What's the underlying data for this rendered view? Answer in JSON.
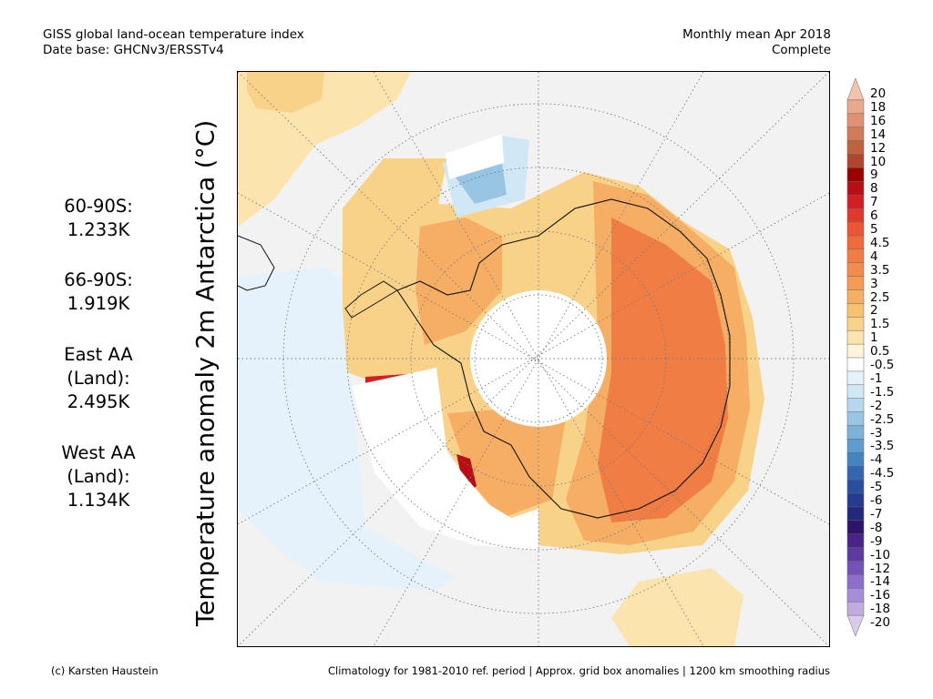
{
  "header": {
    "line1_left": "GISS global land-ocean temperature index",
    "line2_left": "Date base: GHCNv3/ERSSTv4",
    "line1_right": "Monthly mean Apr 2018",
    "line2_right": "Complete"
  },
  "stats": [
    {
      "label": "60-90S:",
      "value": "1.233K"
    },
    {
      "label": "66-90S:",
      "value": "1.919K"
    },
    {
      "label": "East AA",
      "label2": "(Land):",
      "value": "2.495K"
    },
    {
      "label": "West AA",
      "label2": "(Land):",
      "value": "1.134K"
    }
  ],
  "axis_title": "Temperature anomaly 2m Antarctica (°C)",
  "colorbar": {
    "labels": [
      "20",
      "18",
      "16",
      "14",
      "12",
      "10",
      "9",
      "8",
      "7",
      "6",
      "5",
      "4.5",
      "4",
      "3.5",
      "3",
      "2.5",
      "2",
      "1.5",
      "1",
      "0.5",
      "-0.5",
      "-1",
      "-1.5",
      "-2",
      "-2.5",
      "-3",
      "-3.5",
      "-4",
      "-4.5",
      "-5",
      "-6",
      "-7",
      "-8",
      "-9",
      "-10",
      "-12",
      "-14",
      "-16",
      "-18",
      "-20"
    ],
    "colors": [
      "#f4c3ae",
      "#eaa98c",
      "#de9272",
      "#cf7a58",
      "#c06140",
      "#b04530",
      "#9a0000",
      "#b80f16",
      "#d21f23",
      "#e0392c",
      "#eb5535",
      "#ee6b3c",
      "#ef7d44",
      "#f08c4c",
      "#f29c57",
      "#f5ae63",
      "#f7c170",
      "#f9d28a",
      "#fbe4ad",
      "#fdf4da",
      "#ffffff",
      "#e6f2fb",
      "#d0e8f6",
      "#b6d8ee",
      "#98c5e3",
      "#7cb1d8",
      "#5f9bcc",
      "#4684c0",
      "#3567b0",
      "#2a4f9f",
      "#253c8e",
      "#22287a",
      "#2e1466",
      "#4a2389",
      "#5e3aa0",
      "#7553b6",
      "#8d6ec8",
      "#a78cd7",
      "#c2acdf",
      "#d7cce9"
    ]
  },
  "footer": {
    "left": "(c) Karsten Haustein",
    "right": "Climatology for 1981-2010 ref. period | Approx. grid box anomalies | 1200 km smoothing radius"
  }
}
